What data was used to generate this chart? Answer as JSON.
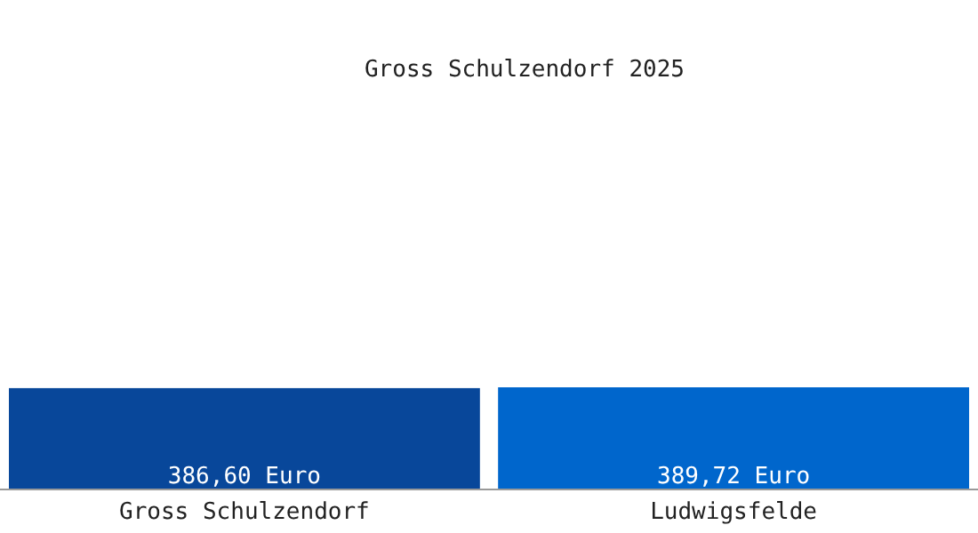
{
  "chart_data": {
    "type": "bar",
    "title": "Gross Schulzendorf 2025",
    "categories": [
      "Gross Schulzendorf",
      "Ludwigsfelde"
    ],
    "values": [
      386.6,
      389.72
    ],
    "colors": [
      "#08479a",
      "#0066cc"
    ],
    "value_labels": [
      "386,60 Euro",
      "389,72 Euro"
    ]
  }
}
